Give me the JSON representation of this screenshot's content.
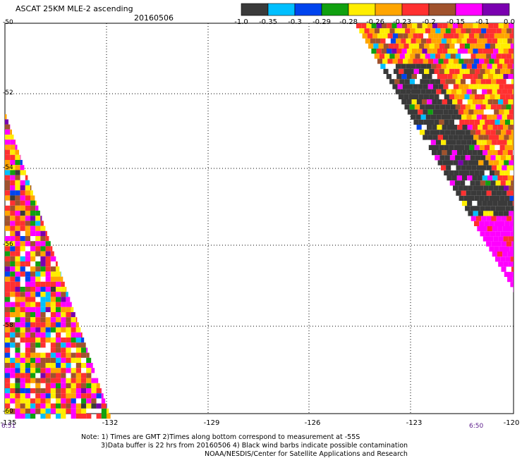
{
  "header": {
    "title": "ASCAT 25KM MLE-2 ascending",
    "date": "20160506"
  },
  "colorbar": {
    "colors": [
      "#3a3a3a",
      "#00bfff",
      "#0044ee",
      "#10a010",
      "#ffee00",
      "#ffa500",
      "#ff3030",
      "#a0522d",
      "#ff00ff",
      "#7a00b0"
    ],
    "labels": [
      "-1.0",
      "-0.35",
      "-0.3",
      "-0.29",
      "-0.28",
      "-0.26",
      "-0.23",
      "-0.2",
      "-0.15",
      "-0.1",
      "0.0"
    ]
  },
  "map": {
    "lat_labels": [
      "-50",
      "-52",
      "-54",
      "-56",
      "-58",
      "-60"
    ],
    "lon_labels": [
      "-135",
      "-132",
      "-129",
      "-126",
      "-123",
      "-120"
    ],
    "time_left": "6:51",
    "time_right": "6:50"
  },
  "footer": {
    "line1": "Note: 1) Times are GMT 2)Times along bottom correspond to measurement at -55S",
    "line2": "3)Data buffer is 22 hrs from 20160506 4) Black wind barbs indicate possible contamination",
    "line3": "NOAA/NESDIS/Center for Satellite Applications and Research"
  }
}
